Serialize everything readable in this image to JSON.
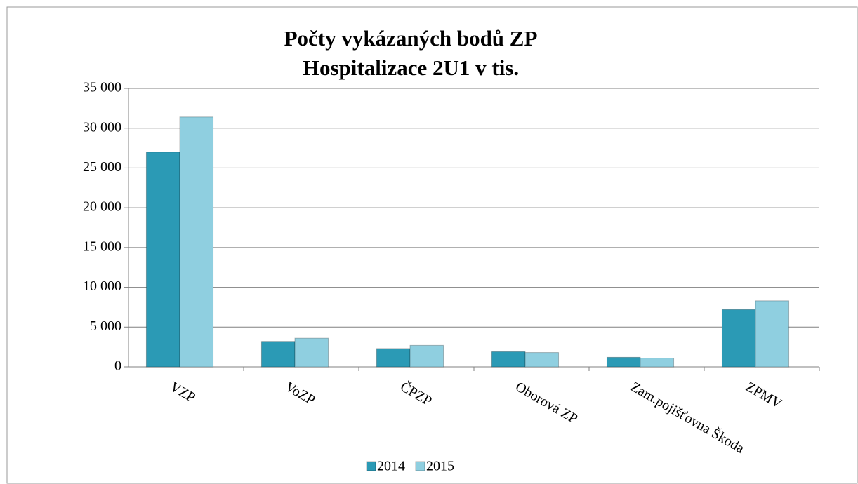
{
  "chart_data": {
    "type": "bar",
    "title": [
      "Počty vykázaných bodů ZP",
      "Hospitalizace 2U1 v tis."
    ],
    "categories": [
      "VZP",
      "VoZP",
      "ČPZP",
      "Oborová ZP",
      "Zam.pojišťovna Škoda",
      "ZPMV"
    ],
    "series": [
      {
        "name": "2014",
        "color": "#2b9ab5",
        "values": [
          27000,
          3200,
          2300,
          1900,
          1200,
          7200
        ]
      },
      {
        "name": "2015",
        "color": "#8fcfe0",
        "values": [
          31400,
          3600,
          2700,
          1800,
          1100,
          8300
        ]
      }
    ],
    "ylim": [
      0,
      35000
    ],
    "yticks": [
      0,
      {
        "value": 5000,
        "label": "5 000"
      },
      {
        "value": 10000,
        "label": "10 000"
      },
      {
        "value": 15000,
        "label": "15 000"
      },
      {
        "value": 20000,
        "label": "20 000"
      },
      {
        "value": 25000,
        "label": "25 000"
      },
      {
        "value": 30000,
        "label": "30 000"
      },
      {
        "value": 35000,
        "label": "35 000"
      }
    ],
    "grid": true,
    "legend": "bottom"
  }
}
